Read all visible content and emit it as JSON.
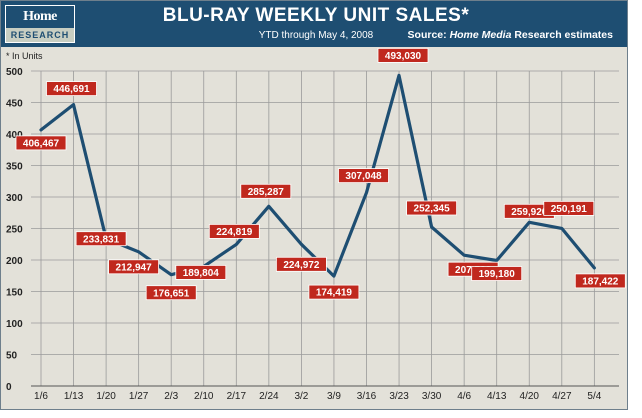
{
  "header": {
    "logo_top": "Home Media",
    "logo_bottom": "RESEARCH",
    "title": "BLU-RAY WEEKLY UNIT SALES*",
    "subtitle": "YTD through May 4, 2008",
    "source_prefix": "Source:",
    "source_italic": "Home Media",
    "source_suffix": "Research estimates"
  },
  "colors": {
    "header_bg": "#1e4e72",
    "plot_bg": "#e3e1d9",
    "line": "#1e4e72",
    "label_bg": "#c0281e",
    "grid": "#9a9a9a"
  },
  "chart_data": {
    "type": "line",
    "unit_note": "* In Units",
    "categories": [
      "1/6",
      "1/13",
      "1/20",
      "1/27",
      "2/3",
      "2/10",
      "2/17",
      "2/24",
      "3/2",
      "3/9",
      "3/16",
      "3/23",
      "3/30",
      "4/6",
      "4/13",
      "4/20",
      "4/27",
      "5/4"
    ],
    "values": [
      406467,
      446691,
      233831,
      212947,
      176651,
      189804,
      224819,
      285287,
      224972,
      174419,
      307048,
      493030,
      252345,
      207583,
      199180,
      259920,
      250191,
      187422
    ],
    "labels": [
      "406,467",
      "446,691",
      "233,831",
      "212,947",
      "176,651",
      "189,804",
      "224,819",
      "285,287",
      "224,972",
      "174,419",
      "307,048",
      "493,030",
      "252,345",
      "207,583",
      "199,180",
      "259,920",
      "250,191",
      "187,422"
    ],
    "yticks": [
      "0",
      "50",
      "100",
      "150",
      "200",
      "250",
      "300",
      "350",
      "400",
      "450",
      "500"
    ],
    "ylim": [
      0,
      500000
    ],
    "grid": true
  }
}
